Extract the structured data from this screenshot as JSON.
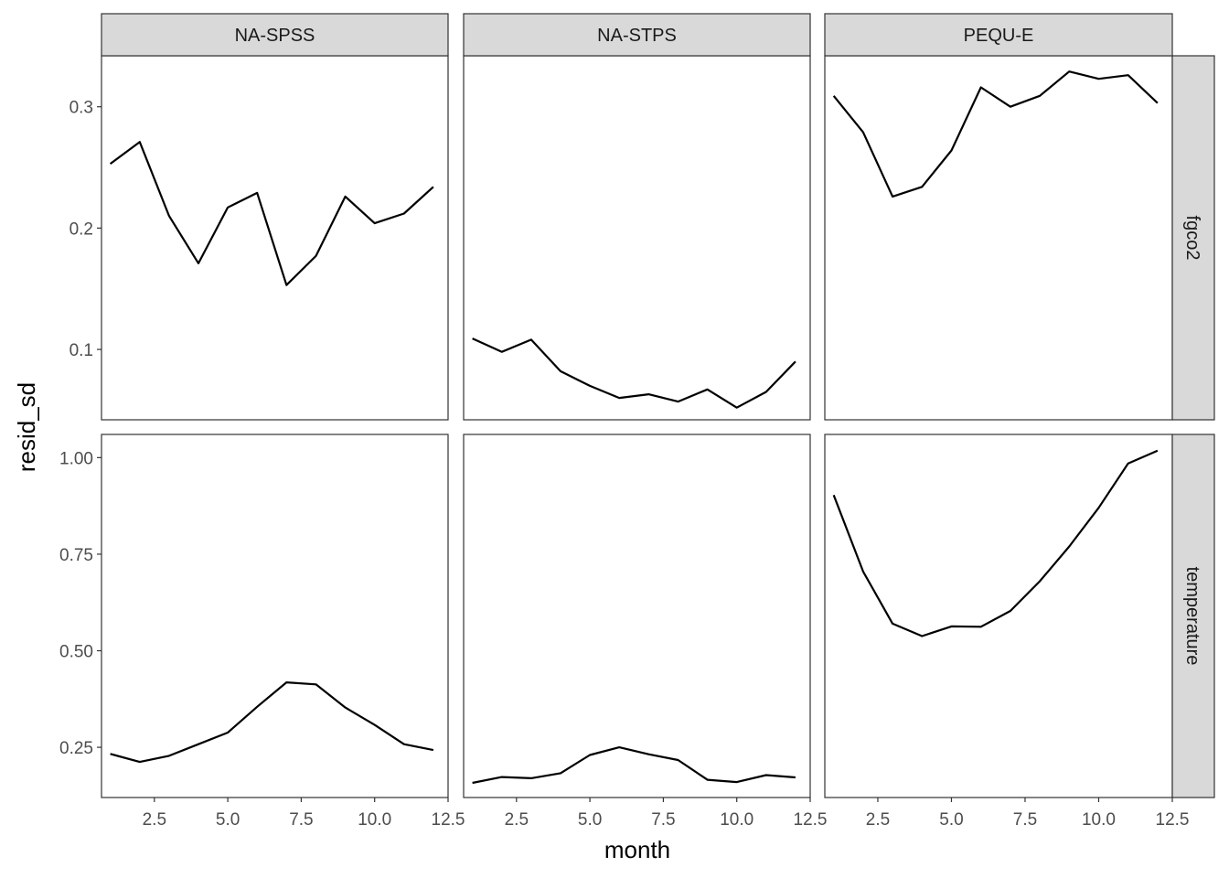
{
  "chart_data": {
    "type": "line",
    "facet_columns": [
      "NA-SPSS",
      "NA-STPS",
      "PEQU-E"
    ],
    "facet_rows": [
      "fgco2",
      "temperature"
    ],
    "xlabel": "month",
    "ylabel": "resid_sd",
    "xlim": [
      0.7,
      12.5
    ],
    "x_ticks": [
      2.5,
      5.0,
      7.5,
      10.0,
      12.5
    ],
    "x_tick_labels": [
      "2.5",
      "5.0",
      "7.5",
      "10.0",
      "12.5"
    ],
    "rows": [
      {
        "name": "fgco2",
        "ylim": [
          0.042,
          0.342
        ],
        "y_ticks": [
          0.1,
          0.2,
          0.3
        ],
        "y_tick_labels": [
          "0.1",
          "0.2",
          "0.3"
        ]
      },
      {
        "name": "temperature",
        "ylim": [
          0.12,
          1.06
        ],
        "y_ticks": [
          0.25,
          0.5,
          0.75,
          1.0
        ],
        "y_tick_labels": [
          "0.25",
          "0.50",
          "0.75",
          "1.00"
        ]
      }
    ],
    "panels": [
      {
        "column": "NA-SPSS",
        "row": "fgco2",
        "x": [
          1,
          2,
          3,
          4,
          5,
          6,
          7,
          8,
          9,
          10,
          11,
          12
        ],
        "values": [
          0.253,
          0.271,
          0.21,
          0.171,
          0.217,
          0.229,
          0.153,
          0.177,
          0.226,
          0.204,
          0.212,
          0.234
        ]
      },
      {
        "column": "NA-STPS",
        "row": "fgco2",
        "x": [
          1,
          2,
          3,
          4,
          5,
          6,
          7,
          8,
          9,
          10,
          11,
          12
        ],
        "values": [
          0.109,
          0.098,
          0.108,
          0.082,
          0.07,
          0.06,
          0.063,
          0.057,
          0.067,
          0.052,
          0.065,
          0.09
        ]
      },
      {
        "column": "PEQU-E",
        "row": "fgco2",
        "x": [
          1,
          2,
          3,
          4,
          5,
          6,
          7,
          8,
          9,
          10,
          11,
          12
        ],
        "values": [
          0.309,
          0.279,
          0.226,
          0.234,
          0.264,
          0.316,
          0.3,
          0.309,
          0.329,
          0.323,
          0.326,
          0.303
        ]
      },
      {
        "column": "NA-SPSS",
        "row": "temperature",
        "x": [
          1,
          2,
          3,
          4,
          5,
          6,
          7,
          8,
          9,
          10,
          11,
          12
        ],
        "values": [
          0.233,
          0.212,
          0.228,
          0.258,
          0.288,
          0.355,
          0.418,
          0.413,
          0.353,
          0.308,
          0.258,
          0.243
        ]
      },
      {
        "column": "NA-STPS",
        "row": "temperature",
        "x": [
          1,
          2,
          3,
          4,
          5,
          6,
          7,
          8,
          9,
          10,
          11,
          12
        ],
        "values": [
          0.158,
          0.173,
          0.17,
          0.183,
          0.23,
          0.25,
          0.232,
          0.217,
          0.166,
          0.16,
          0.178,
          0.172
        ]
      },
      {
        "column": "PEQU-E",
        "row": "temperature",
        "x": [
          1,
          2,
          3,
          4,
          5,
          6,
          7,
          8,
          9,
          10,
          11,
          12
        ],
        "values": [
          0.903,
          0.705,
          0.57,
          0.538,
          0.563,
          0.562,
          0.603,
          0.68,
          0.77,
          0.87,
          0.985,
          1.018
        ]
      }
    ]
  }
}
